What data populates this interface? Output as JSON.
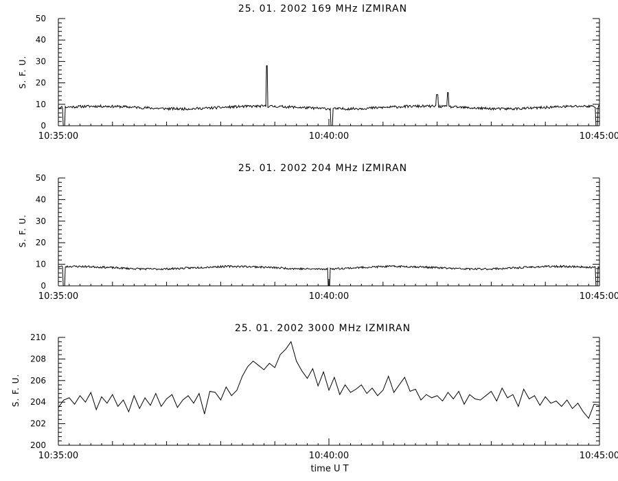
{
  "chart_data": [
    {
      "type": "line",
      "title": "25.  01.  2002    169  MHz    IZMIRAN",
      "ylabel": "S. F. U.",
      "xlabel": "",
      "ylim": [
        0,
        50
      ],
      "yticks": [
        "0",
        "10",
        "20",
        "30",
        "40",
        "50"
      ],
      "xlim_minutes": [
        0,
        10
      ],
      "xtick_labels": [
        "10:35:00",
        "10:40:00",
        "10:45:00"
      ],
      "baseline": 8.5,
      "noise": 0.6,
      "seed": 11,
      "events": [
        {
          "t": 0.1,
          "v": -3,
          "w": 0.02
        },
        {
          "t": 3.85,
          "v": 28,
          "w": 0.012
        },
        {
          "t": 5.05,
          "v": -3,
          "w": 0.02
        },
        {
          "t": 7.0,
          "v": 14.5,
          "w": 0.015
        },
        {
          "t": 7.2,
          "v": 15.5,
          "w": 0.015
        },
        {
          "t": 9.95,
          "v": -3,
          "w": 0.02
        }
      ]
    },
    {
      "type": "line",
      "title": "25.  01.  2002    204  MHz    IZMIRAN",
      "ylabel": "S. F. U.",
      "xlabel": "",
      "ylim": [
        0,
        50
      ],
      "yticks": [
        "0",
        "10",
        "20",
        "30",
        "40",
        "50"
      ],
      "xlim_minutes": [
        0,
        10
      ],
      "xtick_labels": [
        "10:35:00",
        "10:40:00",
        "10:45:00"
      ],
      "baseline": 8.4,
      "noise": 0.45,
      "seed": 23,
      "events": [
        {
          "t": 0.1,
          "v": -3,
          "w": 0.02
        },
        {
          "t": 5.0,
          "v": -3,
          "w": 0.02
        },
        {
          "t": 9.95,
          "v": -3,
          "w": 0.02
        }
      ]
    },
    {
      "type": "line",
      "title": "25.  01.  2002     3000  MHz     IZMIRAN",
      "ylabel": "S. F. U.",
      "xlabel": "time   U T",
      "ylim": [
        200,
        210
      ],
      "yticks": [
        "200",
        "202",
        "204",
        "206",
        "208",
        "210"
      ],
      "xlim_minutes": [
        0,
        10
      ],
      "xtick_labels": [
        "10:35:00",
        "10:40:00",
        "10:45:00"
      ],
      "x": [
        0.0,
        0.1,
        0.2,
        0.3,
        0.4,
        0.5,
        0.6,
        0.7,
        0.8,
        0.9,
        1.0,
        1.1,
        1.2,
        1.3,
        1.4,
        1.5,
        1.6,
        1.7,
        1.8,
        1.9,
        2.0,
        2.1,
        2.2,
        2.3,
        2.4,
        2.5,
        2.6,
        2.7,
        2.8,
        2.9,
        3.0,
        3.1,
        3.2,
        3.3,
        3.4,
        3.5,
        3.6,
        3.7,
        3.8,
        3.9,
        4.0,
        4.1,
        4.2,
        4.3,
        4.4,
        4.5,
        4.6,
        4.7,
        4.8,
        4.9,
        5.0,
        5.1,
        5.2,
        5.3,
        5.4,
        5.5,
        5.6,
        5.7,
        5.8,
        5.9,
        6.0,
        6.1,
        6.2,
        6.3,
        6.4,
        6.5,
        6.6,
        6.7,
        6.8,
        6.9,
        7.0,
        7.1,
        7.2,
        7.3,
        7.4,
        7.5,
        7.6,
        7.7,
        7.8,
        7.9,
        8.0,
        8.1,
        8.2,
        8.3,
        8.4,
        8.5,
        8.6,
        8.7,
        8.8,
        8.9,
        9.0,
        9.1,
        9.2,
        9.3,
        9.4,
        9.5,
        9.6,
        9.7,
        9.8,
        9.9,
        10.0
      ],
      "values": [
        203.5,
        204.2,
        204.4,
        203.8,
        204.6,
        204.0,
        204.9,
        203.3,
        204.5,
        203.9,
        204.7,
        203.6,
        204.2,
        203.1,
        204.6,
        203.4,
        204.4,
        203.7,
        204.8,
        203.6,
        204.3,
        204.7,
        203.5,
        204.2,
        204.6,
        203.9,
        204.8,
        202.9,
        205.0,
        204.9,
        204.2,
        205.4,
        204.6,
        205.1,
        206.4,
        207.3,
        207.8,
        207.4,
        207.0,
        207.6,
        207.2,
        208.4,
        208.9,
        209.6,
        207.8,
        206.9,
        206.2,
        207.1,
        205.5,
        206.8,
        205.1,
        206.3,
        204.7,
        205.6,
        204.9,
        205.2,
        205.6,
        204.8,
        205.3,
        204.6,
        205.1,
        206.4,
        204.9,
        205.6,
        206.3,
        205.0,
        205.2,
        204.2,
        204.7,
        204.4,
        204.6,
        204.1,
        204.9,
        204.3,
        205.0,
        203.8,
        204.7,
        204.3,
        204.2,
        204.6,
        205.0,
        204.1,
        205.3,
        204.4,
        204.7,
        203.6,
        205.2,
        204.3,
        204.6,
        203.7,
        204.5,
        203.9,
        204.1,
        203.6,
        204.2,
        203.4,
        203.9,
        203.1,
        202.5,
        203.8,
        203.7
      ]
    }
  ]
}
